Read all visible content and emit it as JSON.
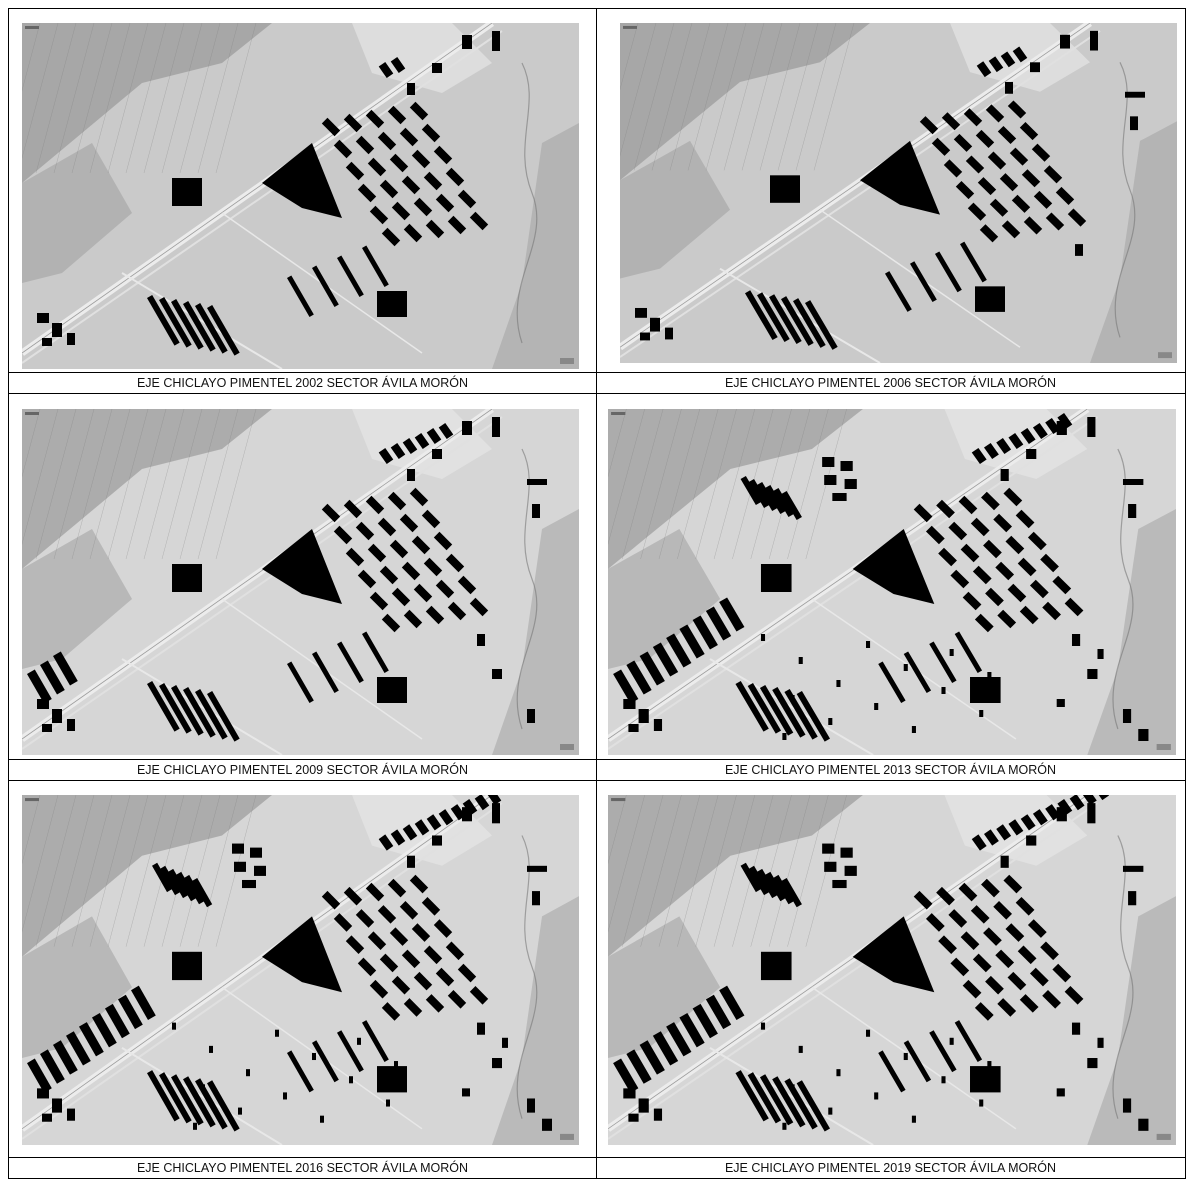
{
  "panels": [
    {
      "caption": "EJE CHICLAYO PIMENTEL 2002 SECTOR ÁVILA MORÓN",
      "year": "2002"
    },
    {
      "caption": "EJE CHICLAYO PIMENTEL 2006 SECTOR ÁVILA MORÓN",
      "year": "2006"
    },
    {
      "caption": "EJE CHICLAYO PIMENTEL 2009 SECTOR ÁVILA MORÓN",
      "year": "2009"
    },
    {
      "caption": "EJE CHICLAYO PIMENTEL 2013 SECTOR ÁVILA MORÓN",
      "year": "2013"
    },
    {
      "caption": "EJE CHICLAYO PIMENTEL 2016 SECTOR ÁVILA MORÓN",
      "year": "2016"
    },
    {
      "caption": "EJE CHICLAYO PIMENTEL 2019 SECTOR ÁVILA MORÓN",
      "year": "2019"
    }
  ],
  "colors": {
    "built_area": "#000000",
    "terrain_light": "#cfcfcf",
    "terrain_dark": "#8a8a8a",
    "road": "#ececec"
  }
}
